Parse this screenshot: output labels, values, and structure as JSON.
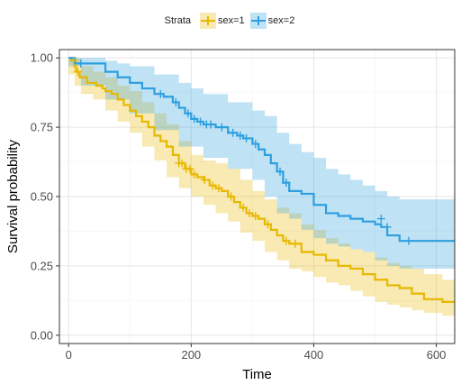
{
  "legend": {
    "title": "Strata",
    "items": [
      {
        "label": "sex=1",
        "color": "#E7B800"
      },
      {
        "label": "sex=2",
        "color": "#2E9FDF"
      }
    ]
  },
  "chart_data": {
    "type": "line",
    "subtype": "kaplan-meier step curves with confidence bands and censor marks",
    "xlabel": "Time",
    "ylabel": "Survival probability",
    "xlim": [
      -15,
      630
    ],
    "ylim": [
      -0.03,
      1.03
    ],
    "xticks": [
      "0",
      "200",
      "400",
      "600"
    ],
    "xtick_values": [
      0,
      200,
      400,
      600
    ],
    "yticks": [
      "0.00",
      "0.25",
      "0.50",
      "0.75",
      "1.00"
    ],
    "ytick_values": [
      0,
      0.25,
      0.5,
      0.75,
      1.0
    ],
    "grid": true,
    "legend_position": "top",
    "series": [
      {
        "name": "sex=1",
        "color": "#E7B800",
        "steps": [
          [
            0,
            1.0
          ],
          [
            5,
            0.99
          ],
          [
            9,
            0.97
          ],
          [
            12,
            0.95
          ],
          [
            18,
            0.93
          ],
          [
            30,
            0.91
          ],
          [
            45,
            0.9
          ],
          [
            55,
            0.89
          ],
          [
            60,
            0.88
          ],
          [
            70,
            0.87
          ],
          [
            80,
            0.85
          ],
          [
            90,
            0.83
          ],
          [
            100,
            0.81
          ],
          [
            110,
            0.79
          ],
          [
            120,
            0.77
          ],
          [
            130,
            0.75
          ],
          [
            140,
            0.72
          ],
          [
            150,
            0.7
          ],
          [
            160,
            0.68
          ],
          [
            170,
            0.65
          ],
          [
            180,
            0.62
          ],
          [
            190,
            0.6
          ],
          [
            200,
            0.58
          ],
          [
            210,
            0.57
          ],
          [
            220,
            0.56
          ],
          [
            230,
            0.54
          ],
          [
            240,
            0.53
          ],
          [
            250,
            0.52
          ],
          [
            260,
            0.5
          ],
          [
            270,
            0.48
          ],
          [
            280,
            0.46
          ],
          [
            290,
            0.44
          ],
          [
            300,
            0.43
          ],
          [
            310,
            0.42
          ],
          [
            320,
            0.4
          ],
          [
            330,
            0.38
          ],
          [
            340,
            0.36
          ],
          [
            350,
            0.34
          ],
          [
            360,
            0.33
          ],
          [
            380,
            0.3
          ],
          [
            400,
            0.29
          ],
          [
            420,
            0.27
          ],
          [
            440,
            0.25
          ],
          [
            460,
            0.24
          ],
          [
            480,
            0.22
          ],
          [
            500,
            0.2
          ],
          [
            520,
            0.18
          ],
          [
            540,
            0.17
          ],
          [
            560,
            0.15
          ],
          [
            580,
            0.13
          ],
          [
            610,
            0.12
          ]
        ],
        "end_x": 630,
        "lower": [
          [
            0,
            1.0
          ],
          [
            10,
            0.94
          ],
          [
            20,
            0.9
          ],
          [
            40,
            0.87
          ],
          [
            60,
            0.85
          ],
          [
            80,
            0.81
          ],
          [
            100,
            0.77
          ],
          [
            120,
            0.73
          ],
          [
            140,
            0.68
          ],
          [
            160,
            0.63
          ],
          [
            180,
            0.57
          ],
          [
            200,
            0.53
          ],
          [
            220,
            0.5
          ],
          [
            240,
            0.47
          ],
          [
            260,
            0.44
          ],
          [
            280,
            0.41
          ],
          [
            300,
            0.37
          ],
          [
            320,
            0.34
          ],
          [
            340,
            0.3
          ],
          [
            360,
            0.27
          ],
          [
            380,
            0.24
          ],
          [
            400,
            0.23
          ],
          [
            420,
            0.21
          ],
          [
            440,
            0.19
          ],
          [
            460,
            0.18
          ],
          [
            480,
            0.16
          ],
          [
            500,
            0.14
          ],
          [
            520,
            0.12
          ],
          [
            540,
            0.11
          ],
          [
            560,
            0.1
          ],
          [
            580,
            0.09
          ],
          [
            610,
            0.08
          ],
          [
            630,
            0.07
          ]
        ],
        "upper": [
          [
            0,
            1.0
          ],
          [
            10,
            1.0
          ],
          [
            20,
            0.97
          ],
          [
            40,
            0.95
          ],
          [
            60,
            0.93
          ],
          [
            80,
            0.9
          ],
          [
            100,
            0.88
          ],
          [
            120,
            0.84
          ],
          [
            140,
            0.8
          ],
          [
            160,
            0.76
          ],
          [
            180,
            0.7
          ],
          [
            200,
            0.65
          ],
          [
            220,
            0.63
          ],
          [
            240,
            0.62
          ],
          [
            260,
            0.6
          ],
          [
            280,
            0.56
          ],
          [
            300,
            0.52
          ],
          [
            320,
            0.49
          ],
          [
            340,
            0.46
          ],
          [
            360,
            0.44
          ],
          [
            380,
            0.4
          ],
          [
            400,
            0.38
          ],
          [
            420,
            0.35
          ],
          [
            440,
            0.33
          ],
          [
            460,
            0.31
          ],
          [
            480,
            0.3
          ],
          [
            500,
            0.28
          ],
          [
            520,
            0.26
          ],
          [
            540,
            0.25
          ],
          [
            560,
            0.24
          ],
          [
            580,
            0.22
          ],
          [
            610,
            0.2
          ],
          [
            630,
            0.19
          ]
        ],
        "censored": [
          [
            8,
            0.99
          ],
          [
            15,
            0.95
          ],
          [
            180,
            0.62
          ],
          [
            185,
            0.62
          ],
          [
            192,
            0.6
          ],
          [
            198,
            0.6
          ],
          [
            205,
            0.58
          ],
          [
            222,
            0.56
          ],
          [
            235,
            0.54
          ],
          [
            245,
            0.53
          ],
          [
            265,
            0.5
          ],
          [
            285,
            0.46
          ],
          [
            295,
            0.44
          ],
          [
            305,
            0.43
          ],
          [
            325,
            0.4
          ],
          [
            355,
            0.34
          ],
          [
            370,
            0.33
          ]
        ]
      },
      {
        "name": "sex=2",
        "color": "#2E9FDF",
        "steps": [
          [
            0,
            1.0
          ],
          [
            10,
            0.98
          ],
          [
            60,
            0.95
          ],
          [
            80,
            0.93
          ],
          [
            100,
            0.91
          ],
          [
            120,
            0.89
          ],
          [
            140,
            0.87
          ],
          [
            155,
            0.86
          ],
          [
            170,
            0.84
          ],
          [
            180,
            0.82
          ],
          [
            190,
            0.8
          ],
          [
            200,
            0.78
          ],
          [
            210,
            0.77
          ],
          [
            220,
            0.76
          ],
          [
            240,
            0.75
          ],
          [
            260,
            0.73
          ],
          [
            275,
            0.72
          ],
          [
            285,
            0.71
          ],
          [
            300,
            0.69
          ],
          [
            310,
            0.67
          ],
          [
            320,
            0.65
          ],
          [
            330,
            0.62
          ],
          [
            340,
            0.59
          ],
          [
            350,
            0.55
          ],
          [
            360,
            0.52
          ],
          [
            380,
            0.51
          ],
          [
            400,
            0.47
          ],
          [
            420,
            0.44
          ],
          [
            440,
            0.43
          ],
          [
            460,
            0.42
          ],
          [
            480,
            0.41
          ],
          [
            500,
            0.4
          ],
          [
            510,
            0.39
          ],
          [
            520,
            0.36
          ],
          [
            540,
            0.34
          ]
        ],
        "end_x": 630,
        "lower": [
          [
            0,
            1.0
          ],
          [
            20,
            0.97
          ],
          [
            60,
            0.9
          ],
          [
            100,
            0.85
          ],
          [
            140,
            0.8
          ],
          [
            180,
            0.74
          ],
          [
            220,
            0.68
          ],
          [
            260,
            0.64
          ],
          [
            300,
            0.6
          ],
          [
            320,
            0.56
          ],
          [
            340,
            0.5
          ],
          [
            360,
            0.44
          ],
          [
            380,
            0.42
          ],
          [
            400,
            0.38
          ],
          [
            420,
            0.35
          ],
          [
            440,
            0.33
          ],
          [
            460,
            0.32
          ],
          [
            480,
            0.31
          ],
          [
            500,
            0.3
          ],
          [
            520,
            0.27
          ],
          [
            540,
            0.25
          ],
          [
            630,
            0.24
          ]
        ],
        "upper": [
          [
            0,
            1.0
          ],
          [
            20,
            1.0
          ],
          [
            60,
            0.99
          ],
          [
            80,
            0.98
          ],
          [
            100,
            0.97
          ],
          [
            140,
            0.94
          ],
          [
            180,
            0.91
          ],
          [
            200,
            0.89
          ],
          [
            220,
            0.87
          ],
          [
            260,
            0.84
          ],
          [
            300,
            0.81
          ],
          [
            320,
            0.79
          ],
          [
            340,
            0.73
          ],
          [
            360,
            0.69
          ],
          [
            380,
            0.66
          ],
          [
            400,
            0.64
          ],
          [
            420,
            0.6
          ],
          [
            440,
            0.58
          ],
          [
            460,
            0.56
          ],
          [
            480,
            0.54
          ],
          [
            500,
            0.52
          ],
          [
            520,
            0.5
          ],
          [
            540,
            0.49
          ],
          [
            630,
            0.48
          ]
        ],
        "censored": [
          [
            20,
            0.98
          ],
          [
            150,
            0.87
          ],
          [
            175,
            0.84
          ],
          [
            195,
            0.8
          ],
          [
            205,
            0.78
          ],
          [
            215,
            0.77
          ],
          [
            225,
            0.76
          ],
          [
            232,
            0.76
          ],
          [
            250,
            0.75
          ],
          [
            268,
            0.73
          ],
          [
            280,
            0.72
          ],
          [
            290,
            0.71
          ],
          [
            305,
            0.69
          ],
          [
            345,
            0.59
          ],
          [
            355,
            0.55
          ],
          [
            510,
            0.42
          ],
          [
            520,
            0.39
          ],
          [
            555,
            0.34
          ]
        ]
      }
    ]
  }
}
